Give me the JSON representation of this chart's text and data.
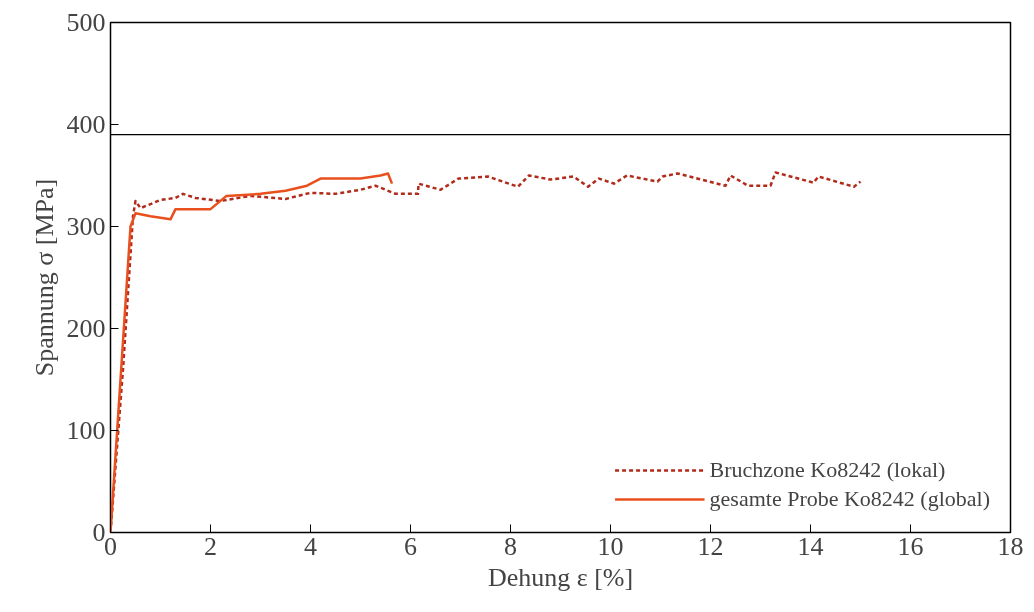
{
  "chart_data": {
    "type": "line",
    "xlabel": "Dehung ε [%]",
    "ylabel": "Spannung σ [MPa]",
    "xlim": [
      0,
      18
    ],
    "ylim": [
      0,
      500
    ],
    "xticks": [
      0,
      2,
      4,
      6,
      8,
      10,
      12,
      14,
      16,
      18
    ],
    "yticks": [
      0,
      100,
      200,
      300,
      400,
      500
    ],
    "grid": false,
    "legend": "bottom right",
    "ref_lines": [
      {
        "axis": "y",
        "value": 390,
        "label": null,
        "color": "#000000"
      }
    ],
    "series": [
      {
        "name": "Bruchzone Ko8242 (lokal)",
        "color": "#b22a1a",
        "line_style": "dashed",
        "x": [
          0,
          0.25,
          0.45,
          0.5,
          0.6,
          0.8,
          1.0,
          1.3,
          1.45,
          1.7,
          2.2,
          2.8,
          3.5,
          4.0,
          4.5,
          5.0,
          5.3,
          5.7,
          6.15,
          6.16,
          6.6,
          6.96,
          7.55,
          8.15,
          8.37,
          8.8,
          9.26,
          9.55,
          9.77,
          10.07,
          10.33,
          10.94,
          11.04,
          11.34,
          12.3,
          12.4,
          12.75,
          13.2,
          13.3,
          14.06,
          14.16,
          14.87,
          15.0
        ],
        "values": [
          0,
          160,
          310,
          325,
          318,
          322,
          326,
          328,
          332,
          328,
          325,
          330,
          327,
          333,
          332,
          336,
          340,
          332,
          332,
          342,
          336,
          347,
          349,
          339,
          350,
          346,
          349,
          339,
          347,
          342,
          350,
          344,
          349,
          352,
          340,
          350,
          340,
          340,
          353,
          343,
          349,
          339,
          344
        ]
      },
      {
        "name": "gesamte Probe Ko8242 (global)",
        "color": "#e8501e",
        "line_style": "solid",
        "x": [
          0,
          0.2,
          0.4,
          0.5,
          0.8,
          1.2,
          1.3,
          2.0,
          2.32,
          3.0,
          3.5,
          3.93,
          4.2,
          5.0,
          5.4,
          5.55,
          5.63
        ],
        "values": [
          0,
          150,
          300,
          313,
          310,
          307,
          317,
          317,
          330,
          332,
          335,
          340,
          347,
          347,
          350,
          352,
          342
        ]
      }
    ]
  }
}
